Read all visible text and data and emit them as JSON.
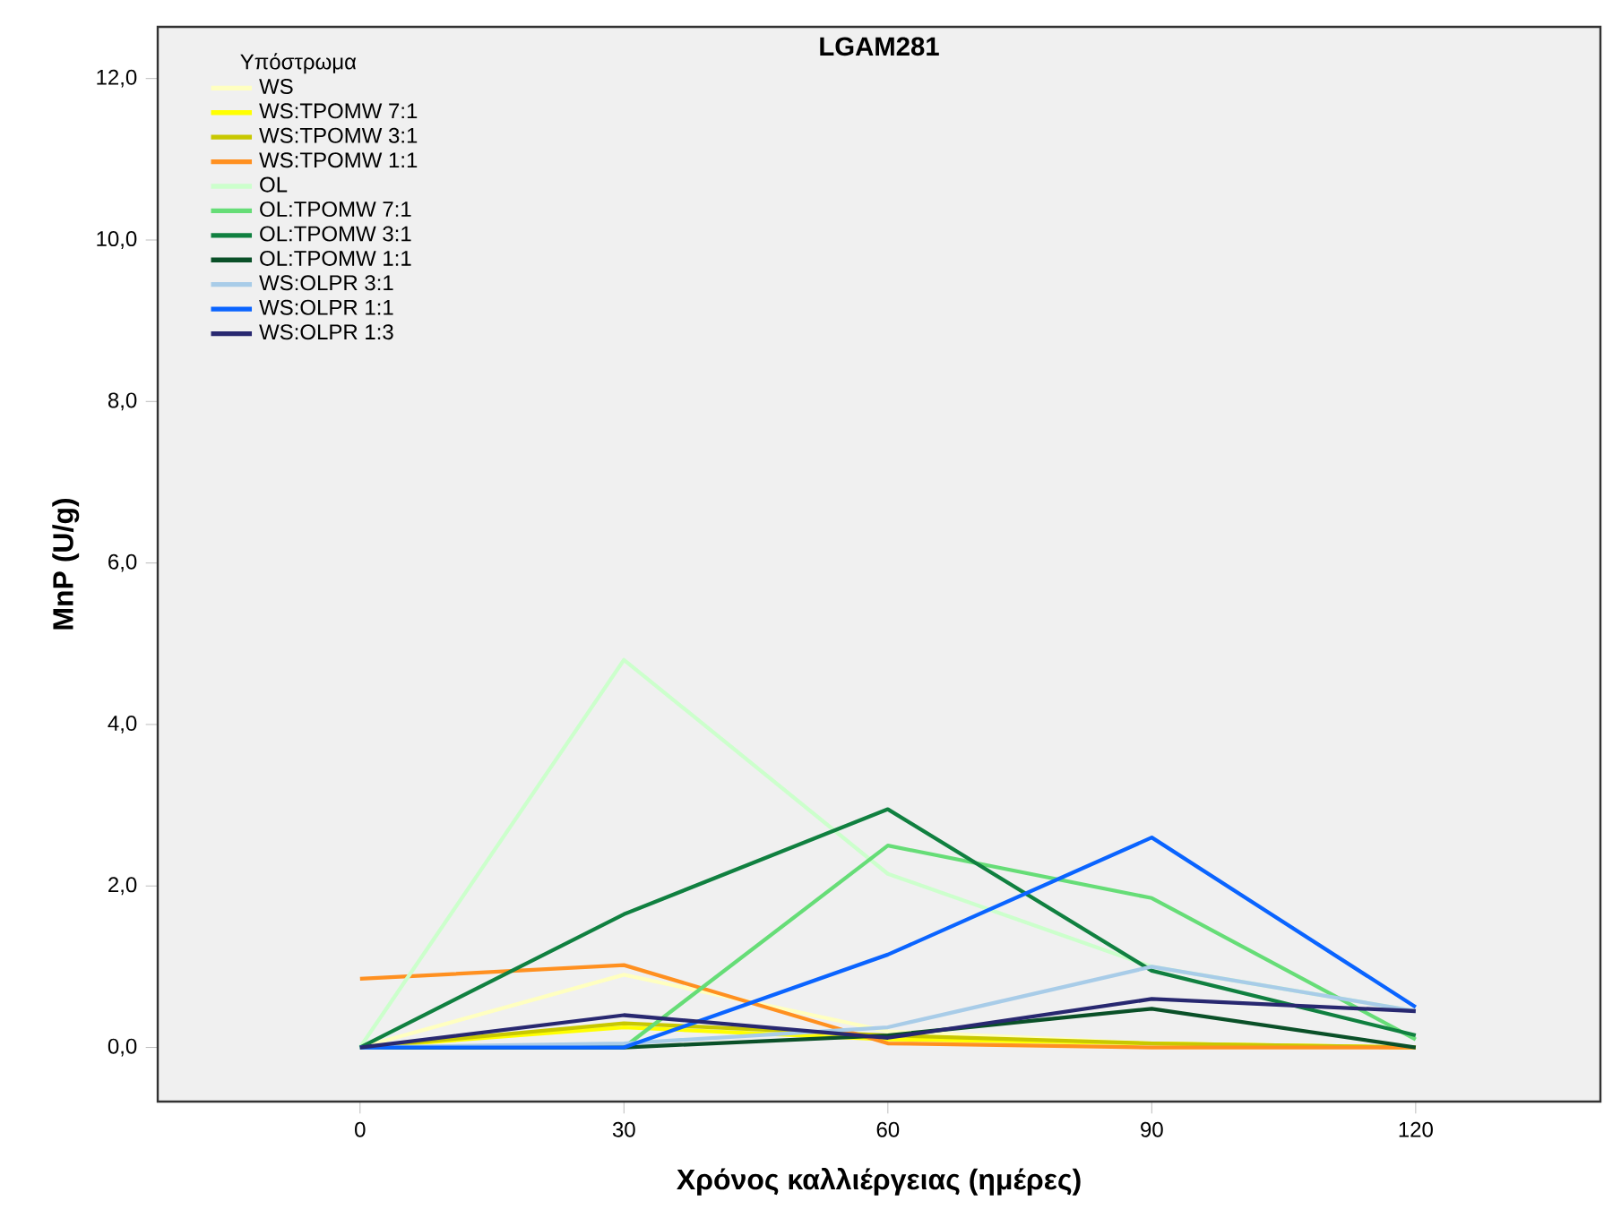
{
  "chart_data": {
    "type": "line",
    "title": "LGAM281",
    "xlabel": "Χρόνος καλλιέργειας (ημέρες)",
    "ylabel": "MnP (U/g)",
    "legend_title": "Υπόστρωμα",
    "legend": "top left",
    "x": [
      0,
      30,
      60,
      90,
      120
    ],
    "xlim": [
      -23,
      141
    ],
    "ylim": [
      -0.67,
      12.64
    ],
    "xticks": [
      0,
      30,
      60,
      90,
      120
    ],
    "yticks": [
      {
        "value": 0,
        "label": "0,0"
      },
      {
        "value": 2,
        "label": "2,0"
      },
      {
        "value": 4,
        "label": "4,0"
      },
      {
        "value": 6,
        "label": "6,0"
      },
      {
        "value": 8,
        "label": "8,0"
      },
      {
        "value": 10,
        "label": "10,0"
      },
      {
        "value": 12,
        "label": "12,0"
      }
    ],
    "series": [
      {
        "name": "WS",
        "color": "#ffffc0",
        "values": [
          0,
          0.9,
          0.2,
          0.05,
          0
        ]
      },
      {
        "name": "WS:TPOMW 7:1",
        "color": "#ffff00",
        "values": [
          0,
          0.25,
          0.1,
          0.05,
          0
        ]
      },
      {
        "name": "WS:TPOMW 3:1",
        "color": "#c8c800",
        "values": [
          0,
          0.3,
          0.15,
          0.05,
          0
        ]
      },
      {
        "name": "WS:TPOMW 1:1",
        "color": "#ff9020",
        "values": [
          0.85,
          1.02,
          0.05,
          0,
          0
        ]
      },
      {
        "name": "OL",
        "color": "#ccffcc",
        "values": [
          0,
          4.8,
          2.15,
          1.0,
          0.45
        ]
      },
      {
        "name": "OL:TPOMW 7:1",
        "color": "#66dd77",
        "values": [
          0,
          0,
          2.5,
          1.85,
          0.1
        ]
      },
      {
        "name": "OL:TPOMW 3:1",
        "color": "#108040",
        "values": [
          0,
          1.65,
          2.95,
          0.95,
          0.15
        ]
      },
      {
        "name": "OL:TPOMW 1:1",
        "color": "#0a5028",
        "values": [
          0,
          0,
          0.15,
          0.48,
          0
        ]
      },
      {
        "name": "WS:OLPR 3:1",
        "color": "#a8cce8",
        "values": [
          0,
          0.05,
          0.25,
          1.0,
          0.45
        ]
      },
      {
        "name": "WS:OLPR 1:1",
        "color": "#0a64ff",
        "values": [
          0,
          0,
          1.15,
          2.6,
          0.5
        ]
      },
      {
        "name": "WS:OLPR 1:3",
        "color": "#282870",
        "values": [
          0,
          0.4,
          0.12,
          0.6,
          0.45
        ]
      }
    ]
  }
}
